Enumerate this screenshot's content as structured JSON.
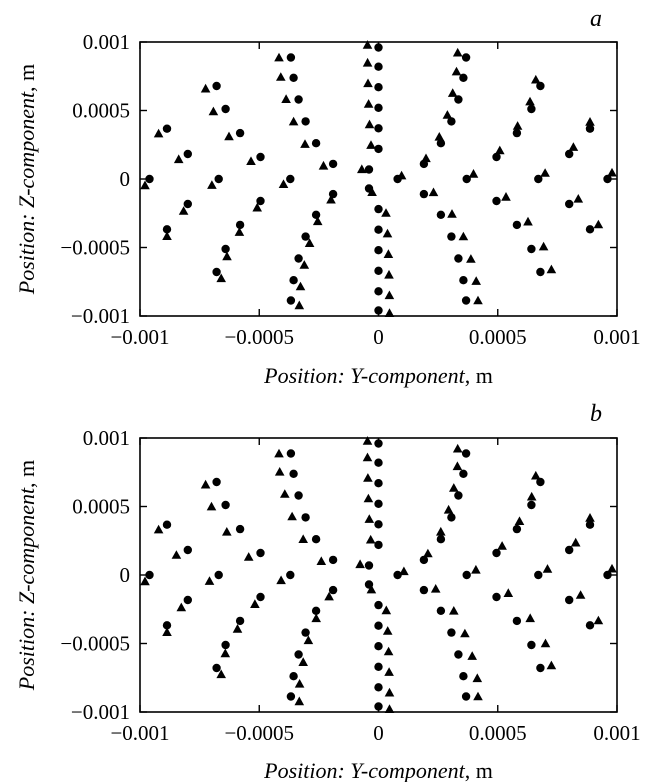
{
  "chart_data": [
    {
      "type": "scatter",
      "panel_label": "a",
      "xlabel_italic": "Position: Y-component",
      "xlabel_unit": ", m",
      "ylabel_italic": "Position: Z-component",
      "ylabel_unit": ", m",
      "xlim": [
        -0.001,
        0.001
      ],
      "ylim": [
        -0.001,
        0.001
      ],
      "xticks": [
        -0.001,
        -0.0005,
        0,
        0.0005,
        0.001
      ],
      "yticks": [
        -0.001,
        -0.0005,
        0,
        0.0005,
        0.001
      ],
      "xtick_labels": [
        "−0.001",
        "−0.0005",
        "0",
        "0.0005",
        "0.001"
      ],
      "ytick_labels": [
        "−0.001",
        "−0.0005",
        "0",
        "0.0005",
        "0.001"
      ],
      "grid": false,
      "series": [
        {
          "marker": "circle",
          "rings": [
            [
              0.00096,
              16
            ],
            [
              0.00082,
              14
            ],
            [
              0.00067,
              12
            ],
            [
              0.00052,
              10
            ],
            [
              0.00037,
              8
            ],
            [
              0.00022,
              6
            ],
            [
              8e-05,
              3
            ]
          ]
        },
        {
          "marker": "triangle",
          "rings": [
            [
              0.00098,
              16
            ],
            [
              0.00085,
              14
            ],
            [
              0.0007,
              12
            ],
            [
              0.00055,
              10
            ],
            [
              0.0004,
              8
            ],
            [
              0.00025,
              6
            ],
            [
              0.0001,
              3
            ]
          ]
        }
      ]
    },
    {
      "type": "scatter",
      "panel_label": "b",
      "xlabel_italic": "Position: Y-component",
      "xlabel_unit": ", m",
      "ylabel_italic": "Position: Z-component",
      "ylabel_unit": ", m",
      "xlim": [
        -0.001,
        0.001
      ],
      "ylim": [
        -0.001,
        0.001
      ],
      "xticks": [
        -0.001,
        -0.0005,
        0,
        0.0005,
        0.001
      ],
      "yticks": [
        -0.001,
        -0.0005,
        0,
        0.0005,
        0.001
      ],
      "xtick_labels": [
        "−0.001",
        "−0.0005",
        "0",
        "0.0005",
        "0.001"
      ],
      "ytick_labels": [
        "−0.001",
        "−0.0005",
        "0",
        "0.0005",
        "0.001"
      ],
      "grid": false,
      "series": [
        {
          "marker": "circle",
          "rings": [
            [
              0.00096,
              16
            ],
            [
              0.00082,
              14
            ],
            [
              0.00067,
              12
            ],
            [
              0.00052,
              10
            ],
            [
              0.00037,
              8
            ],
            [
              0.00022,
              6
            ],
            [
              8e-05,
              3
            ]
          ]
        },
        {
          "marker": "triangle",
          "rings": [
            [
              0.00098,
              16
            ],
            [
              0.00086,
              14
            ],
            [
              0.00071,
              12
            ],
            [
              0.00056,
              10
            ],
            [
              0.00041,
              8
            ],
            [
              0.00026,
              6
            ],
            [
              0.00011,
              3
            ]
          ]
        }
      ]
    }
  ]
}
